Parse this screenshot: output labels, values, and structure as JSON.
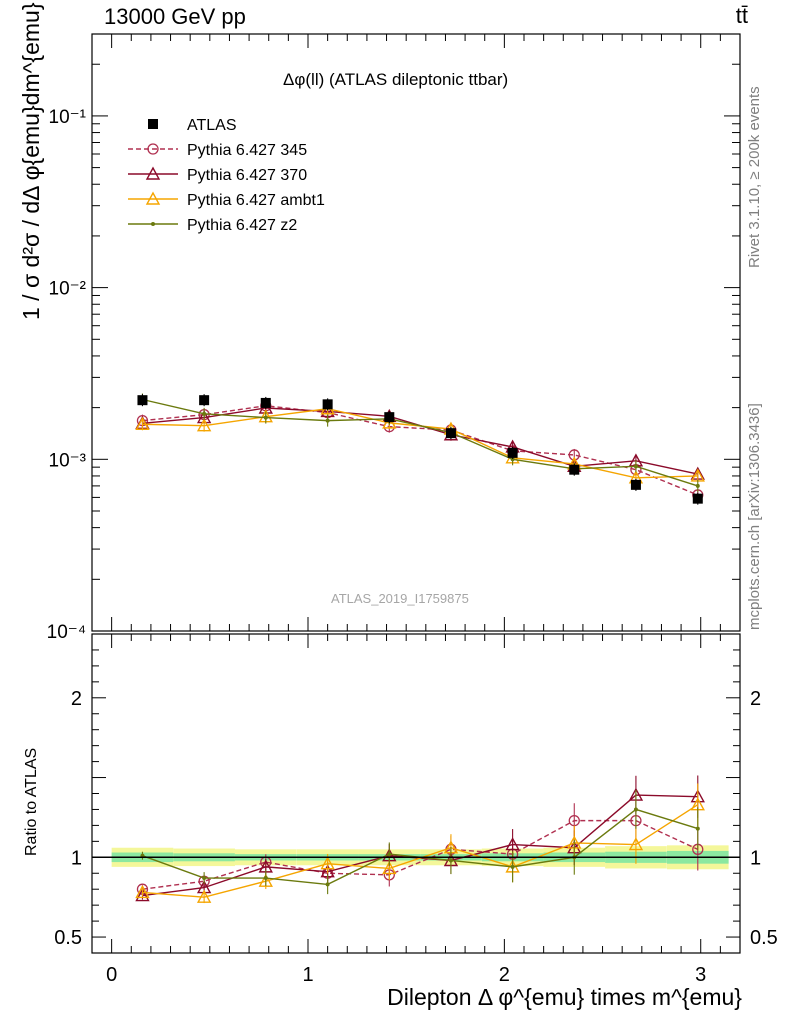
{
  "header": {
    "energy": "13000 GeV pp",
    "process": "tt̄",
    "side_version": "Rivet 3.1.10, ≥ 200k events",
    "side_source": "mcplots.cern.ch [arXiv:1306.3436]"
  },
  "chart_data": [
    {
      "type": "scatter",
      "panel": "main",
      "title": "Δφ(ll) (ATLAS dileptonic ttbar)",
      "ylabel": "1 / σ  d²σ / dΔ φ{emu}dm^{emu}",
      "xlabel": "Dilepton Δ φ^{emu} times m^{emu}",
      "annotation": "ATLAS_2019_I1759875",
      "yscale": "log",
      "xlim": [
        -0.1,
        3.2
      ],
      "ylim": [
        0.0001,
        0.3
      ],
      "yticks": [
        "10⁻⁴",
        "10⁻³",
        "10⁻²",
        "10⁻¹"
      ],
      "legend_position": "top-left",
      "x": [
        0.157,
        0.471,
        0.785,
        1.1,
        1.414,
        1.728,
        2.042,
        2.356,
        2.67,
        2.985
      ],
      "series": [
        {
          "name": "ATLAS",
          "color": "#000000",
          "marker": "filled-square",
          "line": "none",
          "values": [
            0.00221,
            0.00221,
            0.00213,
            0.00209,
            0.00176,
            0.00142,
            0.00109,
            0.00087,
            0.00071,
            0.00059
          ]
        },
        {
          "name": "Pythia 6.427 345",
          "color": "#b03050",
          "marker": "open-circle",
          "line": "dashed",
          "values": [
            0.00168,
            0.00182,
            0.00205,
            0.00187,
            0.00155,
            0.00148,
            0.00112,
            0.00106,
            0.00087,
            0.00062
          ]
        },
        {
          "name": "Pythia 6.427 370",
          "color": "#8b0a2a",
          "marker": "open-triangle",
          "line": "solid",
          "values": [
            0.00162,
            0.00175,
            0.00199,
            0.0019,
            0.00178,
            0.00139,
            0.00118,
            0.00091,
            0.00098,
            0.00082
          ]
        },
        {
          "name": "Pythia 6.427 ambt1",
          "color": "#f5a500",
          "marker": "open-triangle",
          "line": "solid",
          "values": [
            0.0016,
            0.00157,
            0.00177,
            0.00197,
            0.00163,
            0.0015,
            0.00102,
            0.00094,
            0.00078,
            0.0008
          ]
        },
        {
          "name": "Pythia 6.427 z2",
          "color": "#6b7a0e",
          "marker": "small-dot",
          "line": "solid",
          "values": [
            0.00223,
            0.00184,
            0.00175,
            0.00168,
            0.00172,
            0.00143,
            0.001,
            0.00088,
            0.00091,
            0.0007
          ]
        }
      ]
    },
    {
      "type": "line",
      "panel": "ratio",
      "ylabel": "Ratio to ATLAS",
      "xlabel": "Dilepton Δ φ^{emu} times m^{emu}",
      "xlim": [
        -0.1,
        3.2
      ],
      "ylim": [
        0.4,
        2.4
      ],
      "xticks": [
        "0",
        "1",
        "2",
        "3"
      ],
      "yticks": [
        "0.5",
        "1",
        "2"
      ],
      "x": [
        0.157,
        0.471,
        0.785,
        1.1,
        1.414,
        1.728,
        2.042,
        2.356,
        2.67,
        2.985
      ],
      "band_inner_halfwidth": [
        0.03,
        0.025,
        0.02,
        0.02,
        0.02,
        0.02,
        0.025,
        0.03,
        0.035,
        0.04
      ],
      "band_outer_halfwidth": [
        0.06,
        0.055,
        0.05,
        0.05,
        0.05,
        0.05,
        0.055,
        0.06,
        0.07,
        0.075
      ],
      "series": [
        {
          "name": "Pythia 6.427 345",
          "color": "#b03050",
          "line": "dashed",
          "values": [
            0.8,
            0.85,
            0.97,
            0.9,
            0.89,
            1.05,
            1.02,
            1.23,
            1.23,
            1.05
          ]
        },
        {
          "name": "Pythia 6.427 370",
          "color": "#8b0a2a",
          "line": "solid",
          "values": [
            0.76,
            0.81,
            0.94,
            0.91,
            1.01,
            0.98,
            1.08,
            1.06,
            1.39,
            1.38
          ]
        },
        {
          "name": "Pythia 6.427 ambt1",
          "color": "#f5a500",
          "line": "solid",
          "values": [
            0.78,
            0.75,
            0.85,
            0.96,
            0.93,
            1.06,
            0.94,
            1.09,
            1.08,
            1.33
          ]
        },
        {
          "name": "Pythia 6.427 z2",
          "color": "#6b7a0e",
          "line": "solid",
          "values": [
            1.01,
            0.87,
            0.87,
            0.83,
            1.02,
            0.98,
            0.94,
            1.0,
            1.3,
            1.18
          ]
        }
      ]
    }
  ]
}
